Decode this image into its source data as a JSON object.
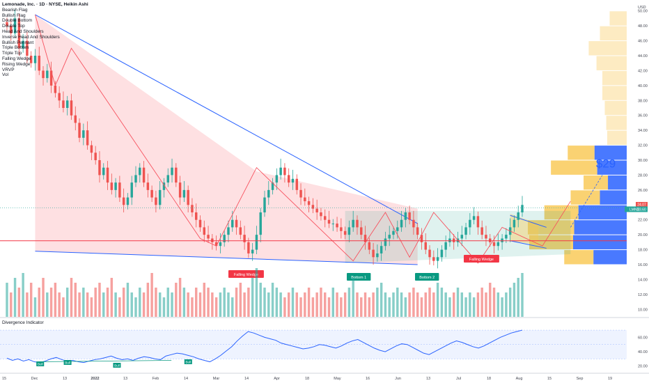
{
  "header": {
    "title": "Lemonade, Inc. · 1D · NYSE, Heikin Ashi",
    "indicators": [
      "Bearish Flag",
      "Bullish Flag",
      "Double Bottom",
      "Double Top",
      "Head And Shoulders",
      "Inverse Head And Shoulders",
      "Bullish Pennant",
      "Triple Bottom",
      "Triple Top",
      "Falling Wedge",
      "Rising Wedge",
      "VRVP",
      "Vol"
    ]
  },
  "colors": {
    "up": "#26a69a",
    "down": "#ef5350",
    "wedge_line": "#2962ff",
    "zigzag": "#f7525f",
    "poc": "#f23645",
    "vp_up": "#2962ff",
    "vp_down": "#f9c74f"
  },
  "chart_data": {
    "type": "candlestick",
    "symbol": "LMND",
    "y_unit": "USD",
    "y_ticks": [
      "50.00",
      "48.00",
      "46.00",
      "44.00",
      "42.00",
      "40.00",
      "38.00",
      "36.00",
      "34.00",
      "32.00",
      "30.00",
      "28.00",
      "26.00",
      "24.00",
      "22.00",
      "20.00",
      "18.00",
      "16.00",
      "14.00",
      "12.00",
      "10.00"
    ],
    "x_ticks": [
      "15",
      "Dec",
      "13",
      "2022",
      "13",
      "Feb",
      "14",
      "Mar",
      "14",
      "Apr",
      "18",
      "May",
      "16",
      "Jun",
      "13",
      "Jul",
      "18",
      "Aug",
      "15",
      "Sep",
      "19"
    ],
    "price_labels": [
      {
        "text": "24.07",
        "color": "#ef5350"
      },
      {
        "text": "LMND",
        "color": "#26a69a"
      },
      {
        "text": "23.60",
        "color": "#26a69a"
      }
    ],
    "closes": [
      48,
      47,
      49,
      45,
      46,
      44,
      43,
      44,
      42,
      41,
      42,
      40,
      39,
      38,
      37,
      38,
      36,
      35,
      33,
      34,
      32,
      31,
      30,
      28,
      29,
      27,
      26,
      27,
      25,
      24,
      25,
      27,
      28,
      29,
      27,
      26,
      25,
      24,
      26,
      27,
      28,
      29,
      27,
      25,
      26,
      24,
      23,
      22,
      21,
      20,
      19.5,
      19,
      18.5,
      19,
      20,
      21,
      22,
      21,
      20,
      19,
      17.5,
      18,
      20,
      23,
      25,
      26,
      27,
      28,
      29,
      28,
      27,
      27.5,
      26,
      25,
      24.5,
      24,
      23.5,
      23,
      22.5,
      22,
      21.5,
      21.5,
      21,
      20.5,
      20,
      21,
      22,
      21,
      20,
      19,
      18,
      17,
      17.5,
      18.5,
      19.5,
      20,
      20.5,
      21,
      22,
      23,
      22,
      21,
      20,
      19,
      18,
      17,
      16.5,
      17,
      18,
      19,
      19.5,
      19,
      19.5,
      20,
      21,
      22,
      22.5,
      21,
      20,
      19.5,
      19,
      18.5,
      19,
      19.5,
      20,
      21,
      22,
      23,
      24
    ],
    "patterns": [
      {
        "label": "Falling Wedge",
        "color": "#f23645"
      },
      {
        "label": "Bottom 1",
        "color": "#089981"
      },
      {
        "label": "Bottom 2",
        "color": "#089981"
      },
      {
        "label": "Falling Wedge",
        "color": "#f23645"
      }
    ],
    "target_label": "$29",
    "volume": [
      7,
      5,
      8,
      6,
      9,
      5,
      7,
      4,
      6,
      8,
      5,
      6,
      7,
      5,
      4,
      6,
      8,
      7,
      5,
      6,
      5,
      4,
      6,
      7,
      5,
      6,
      8,
      5,
      4,
      6,
      7,
      5,
      4,
      6,
      5,
      7,
      9,
      6,
      5,
      4,
      6,
      5,
      7,
      8,
      6,
      5,
      4,
      6,
      5,
      7,
      6,
      5,
      4,
      5,
      6,
      5,
      4,
      6,
      7,
      5,
      6,
      8,
      10,
      7,
      6,
      5,
      7,
      6,
      5,
      4,
      5,
      6,
      5,
      4,
      5,
      6,
      4,
      5,
      6,
      5,
      4,
      6,
      5,
      4,
      5,
      6,
      8,
      5,
      4,
      5,
      4,
      5,
      6,
      7,
      5,
      4,
      5,
      6,
      5,
      4,
      5,
      6,
      5,
      4,
      5,
      6,
      5,
      7,
      6,
      5,
      4,
      5,
      6,
      5,
      4,
      5,
      4,
      5,
      6,
      5,
      7,
      6,
      5,
      4,
      5,
      6,
      7,
      8,
      9
    ],
    "vrvp_bars": [
      {
        "low": 16,
        "high": 18,
        "up": 0.62,
        "down": 0.6
      },
      {
        "low": 18,
        "high": 20,
        "up": 1.0,
        "down": 0.9
      },
      {
        "low": 20,
        "high": 22,
        "up": 0.98,
        "down": 0.95
      },
      {
        "low": 22,
        "high": 24,
        "up": 0.9,
        "down": 0.7
      },
      {
        "low": 24,
        "high": 26,
        "up": 0.5,
        "down": 0.6
      },
      {
        "low": 26,
        "high": 28,
        "up": 0.35,
        "down": 0.5
      },
      {
        "low": 28,
        "high": 30,
        "up": 0.55,
        "down": 0.95
      },
      {
        "low": 30,
        "high": 32,
        "up": 0.6,
        "down": 0.55
      },
      {
        "low": 32,
        "high": 34,
        "up": 0.0,
        "down": 0.4
      },
      {
        "low": 34,
        "high": 36,
        "up": 0.0,
        "down": 0.42
      },
      {
        "low": 36,
        "high": 38,
        "up": 0.0,
        "down": 0.45
      },
      {
        "low": 38,
        "high": 40,
        "up": 0.0,
        "down": 0.5
      },
      {
        "low": 40,
        "high": 42,
        "up": 0.0,
        "down": 0.5
      },
      {
        "low": 42,
        "high": 44,
        "up": 0.0,
        "down": 0.62
      },
      {
        "low": 44,
        "high": 46,
        "up": 0.0,
        "down": 0.78
      },
      {
        "low": 46,
        "high": 48,
        "up": 0.0,
        "down": 0.55
      },
      {
        "low": 48,
        "high": 50,
        "up": 0.0,
        "down": 0.35
      }
    ],
    "indicator": {
      "title": "Divergence Indicator",
      "y_ticks": [
        "60.00",
        "40.00",
        "20.00"
      ],
      "values": [
        31,
        28,
        30,
        27,
        29,
        26,
        25,
        27,
        30,
        32,
        29,
        27,
        28,
        26,
        25,
        27,
        29,
        30,
        32,
        34,
        31,
        29,
        30,
        28,
        31,
        33,
        32,
        30,
        29,
        34,
        36,
        38,
        37,
        35,
        33,
        30,
        28,
        26,
        30,
        35,
        41,
        47,
        55,
        62,
        68,
        66,
        63,
        60,
        58,
        56,
        52,
        50,
        48,
        46,
        44,
        45,
        47,
        50,
        49,
        47,
        45,
        48,
        52,
        55,
        57,
        53,
        49,
        45,
        42,
        40,
        44,
        48,
        51,
        50,
        46,
        42,
        38,
        36,
        40,
        44,
        48,
        52,
        55,
        53,
        50,
        47,
        45,
        48,
        52,
        56,
        60,
        63,
        66,
        68,
        70
      ],
      "labels": [
        "Bull",
        "Bull",
        "Bull",
        "Bull"
      ],
      "bull_color": "#089981"
    }
  }
}
